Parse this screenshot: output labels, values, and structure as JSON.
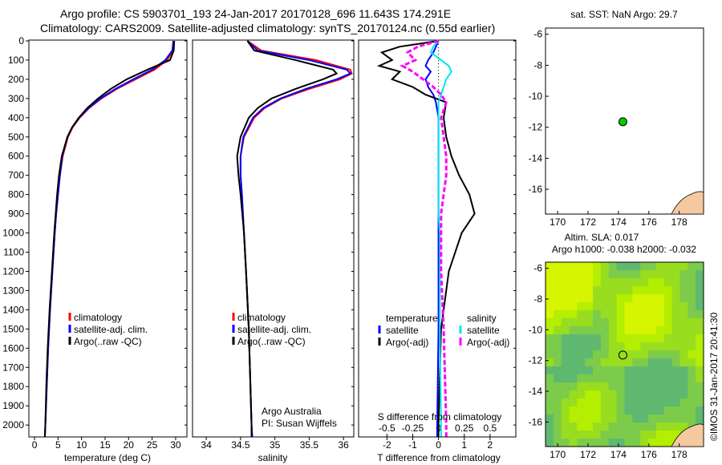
{
  "title": [
    "Argo profile: CS 5903701_193 24-Jan-2017 20170128_696 11.643S 174.291E",
    "Climatology: CARS2009. Satellite-adjusted climatology: synTS_20170124.nc (0.55d earlier)"
  ],
  "side_label": "©IMOS 31-Jan-2017 20:41:30",
  "chart_data": [
    {
      "type": "line",
      "xlabel": "temperature (deg C)",
      "xlim": [
        -1.2,
        32.4
      ],
      "ylim": [
        2120,
        0
      ],
      "xticks": [
        0,
        5,
        10,
        15,
        20,
        25,
        30
      ],
      "yticks": [
        0,
        100,
        200,
        300,
        400,
        500,
        600,
        700,
        800,
        900,
        1000,
        1100,
        1200,
        1300,
        1400,
        1500,
        1600,
        1700,
        1800,
        1900,
        2000
      ],
      "depth": [
        0,
        50,
        100,
        150,
        200,
        250,
        300,
        350,
        400,
        450,
        500,
        600,
        700,
        800,
        900,
        1000,
        1200,
        1400,
        1600,
        1800,
        2000,
        2060
      ],
      "series": [
        {
          "name": "climatology",
          "color": "#ff0000",
          "values": [
            29.6,
            29.4,
            28.2,
            25.5,
            21.5,
            17.5,
            14.2,
            11.6,
            9.6,
            8.1,
            7.1,
            6.0,
            5.4,
            5.0,
            4.6,
            4.3,
            3.8,
            3.3,
            2.9,
            2.6,
            2.3,
            2.2
          ]
        },
        {
          "name": "satellite-adj. clim.",
          "color": "#0000ff",
          "values": [
            29.5,
            29.3,
            27.8,
            25.0,
            21.0,
            17.2,
            14.0,
            11.5,
            9.5,
            8.0,
            7.0,
            5.9,
            5.4,
            5.0,
            4.6,
            4.3,
            3.8,
            3.3,
            2.9,
            2.6,
            2.3,
            2.2
          ]
        },
        {
          "name": "Argo(..raw -QC)",
          "color": "#000000",
          "values": [
            29.7,
            29.6,
            28.8,
            24.0,
            19.6,
            16.2,
            13.5,
            11.2,
            9.4,
            8.0,
            7.0,
            5.8,
            5.2,
            4.8,
            4.5,
            4.2,
            3.7,
            3.2,
            2.8,
            2.5,
            2.3,
            2.2
          ]
        }
      ],
      "legend": "bottom-right"
    },
    {
      "type": "line",
      "xlabel": "salinity",
      "xlim": [
        33.8,
        36.15
      ],
      "ylim": [
        2120,
        0
      ],
      "xticks": [
        34,
        34.5,
        35,
        35.5,
        36
      ],
      "depth": [
        0,
        50,
        100,
        150,
        170,
        200,
        250,
        300,
        350,
        400,
        500,
        600,
        700,
        800,
        1000,
        1200,
        1500,
        2000,
        2060
      ],
      "series": [
        {
          "name": "climatology",
          "color": "#ff0000",
          "values": [
            34.6,
            34.8,
            35.6,
            36.1,
            36.12,
            35.95,
            35.5,
            35.1,
            34.85,
            34.7,
            34.55,
            34.5,
            34.5,
            34.52,
            34.55,
            34.58,
            34.62,
            34.66,
            34.67
          ]
        },
        {
          "name": "satellite-adj. clim.",
          "color": "#0000ff",
          "values": [
            34.6,
            34.75,
            35.5,
            36.05,
            36.1,
            35.9,
            35.45,
            35.08,
            34.83,
            34.68,
            34.54,
            34.5,
            34.5,
            34.52,
            34.55,
            34.58,
            34.62,
            34.66,
            34.67
          ]
        },
        {
          "name": "Argo(..raw -QC)",
          "color": "#000000",
          "values": [
            34.6,
            34.7,
            35.3,
            35.85,
            35.9,
            35.7,
            35.3,
            34.95,
            34.75,
            34.62,
            34.5,
            34.45,
            34.47,
            34.5,
            34.55,
            34.58,
            34.62,
            34.66,
            34.66
          ]
        }
      ],
      "annotations": [
        "Argo Australia",
        "PI: Susan Wijffels"
      ]
    },
    {
      "type": "line",
      "xlabel": "T difference from climatology",
      "xlabel2": "S difference from climatology",
      "xlim": [
        -3.1,
        3.0
      ],
      "ylim": [
        2120,
        0
      ],
      "xticks": [
        -2,
        -1,
        0,
        1,
        2
      ],
      "xticks2_labels": [
        "-0.5",
        "-0.25",
        "0",
        "0.25",
        "0.5"
      ],
      "xticks2_pos": [
        -2,
        -1,
        0,
        1,
        2
      ],
      "depth": [
        0,
        30,
        60,
        100,
        130,
        160,
        200,
        240,
        280,
        320,
        400,
        500,
        600,
        700,
        800,
        900,
        1000,
        1200,
        1500,
        2000,
        2060
      ],
      "series": [
        {
          "name": "temperature satellite",
          "color": "#0000ff",
          "values": [
            0,
            -0.1,
            -0.2,
            -0.4,
            -0.5,
            -0.3,
            -0.5,
            -0.4,
            -0.2,
            -0.1,
            0,
            0,
            0,
            0,
            0,
            0,
            0,
            0,
            0,
            -0.05,
            -0.05
          ]
        },
        {
          "name": "temperature Argo(-adj)",
          "color": "#000000",
          "values": [
            0,
            -1.5,
            -2.2,
            -1.8,
            -2.3,
            -1.5,
            -1.8,
            -1.0,
            -0.5,
            0.3,
            0.2,
            0.3,
            0.5,
            0.8,
            1.2,
            1.4,
            0.9,
            0.4,
            0.1,
            0,
            0
          ]
        },
        {
          "name": "salinity satellite",
          "color": "#00e5ee",
          "values": [
            0,
            -0.2,
            -0.3,
            0.1,
            0.4,
            0.5,
            0.3,
            0.2,
            0.1,
            0,
            0,
            0,
            0,
            0,
            0,
            0,
            0.05,
            0.05,
            0.05,
            0.1,
            0.1
          ]
        },
        {
          "name": "salinity Argo(-adj)",
          "color": "#ff00ff",
          "values": [
            0,
            -0.8,
            -1.2,
            -0.9,
            -1.4,
            -1.0,
            -0.6,
            -0.2,
            0.1,
            0.3,
            0.1,
            0.2,
            0.3,
            0.3,
            0.2,
            0.1,
            0.1,
            0.1,
            0.2,
            0.3,
            0.3
          ]
        }
      ],
      "legend_headers": [
        "temperature",
        "salinity"
      ],
      "legend_labels": [
        "satellite",
        "Argo(-adj)",
        "satellite",
        "Argo(-adj)"
      ]
    },
    {
      "type": "scatter",
      "title": "sat. SST: NaN Argo: 29.7",
      "xlim": [
        169.2,
        179.6
      ],
      "ylim": [
        -17.6,
        -5.6
      ],
      "xticks": [
        170,
        172,
        174,
        176,
        178
      ],
      "yticks": [
        -6,
        -8,
        -10,
        -12,
        -14,
        -16
      ],
      "points": [
        {
          "lon": 174.291,
          "lat": -11.643,
          "color": "#00cc00"
        }
      ]
    },
    {
      "type": "heatmap",
      "title": [
        "Altim. SLA: 0.017",
        "Argo h1000: -0.038 h2000: -0.032"
      ],
      "xlim": [
        169.2,
        179.6
      ],
      "ylim": [
        -17.6,
        -5.6
      ],
      "xticks": [
        170,
        172,
        174,
        176,
        178
      ],
      "yticks": [
        -6,
        -8,
        -10,
        -12,
        -14,
        -16
      ],
      "points": [
        {
          "lon": 174.291,
          "lat": -11.643
        }
      ]
    }
  ]
}
